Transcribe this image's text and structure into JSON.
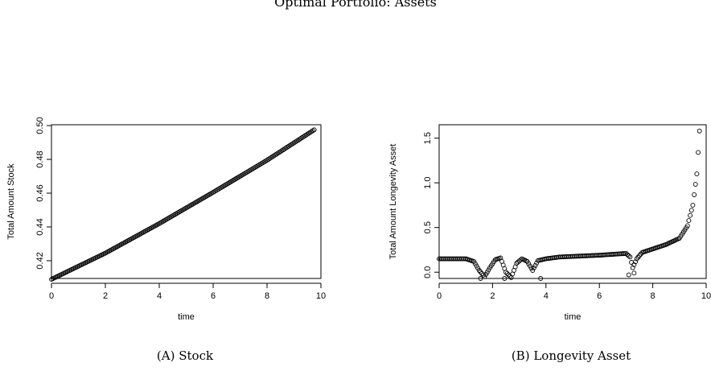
{
  "page": {
    "title_fragment": "Optimal Portfolio: Assets"
  },
  "captions": [
    {
      "label": "(A)",
      "text": "Stock"
    },
    {
      "label": "(B)",
      "text": "Longevity Asset"
    }
  ],
  "chart_data": [
    {
      "type": "scatter",
      "xlabel": "time",
      "ylabel": "Total Amount Stock",
      "xlim": [
        0,
        10
      ],
      "ylim": [
        0.4095,
        0.5005
      ],
      "xticks": [
        0,
        2,
        4,
        6,
        8,
        10
      ],
      "yticks": [
        0.42,
        0.44,
        0.46,
        0.48,
        0.5
      ],
      "grid": false,
      "x_start": 0,
      "x_end": 9.75,
      "x_step": 0.05,
      "y_at_x": [
        [
          0,
          0.409
        ],
        [
          2,
          0.4245
        ],
        [
          4,
          0.442
        ],
        [
          6,
          0.4605
        ],
        [
          8,
          0.4795
        ],
        [
          9.75,
          0.4975
        ]
      ]
    },
    {
      "type": "scatter",
      "xlabel": "time",
      "ylabel": "Total Amount Longevity Asset",
      "xlim": [
        0,
        10
      ],
      "ylim": [
        -0.07,
        1.65
      ],
      "xticks": [
        0,
        2,
        4,
        6,
        8,
        10
      ],
      "yticks": [
        0.0,
        0.5,
        1.0,
        1.5
      ],
      "grid": false,
      "x_start": 0,
      "x_end": 9.75,
      "x_step": 0.05,
      "y_at_x": [
        [
          0,
          0.15
        ],
        [
          1.0,
          0.15
        ],
        [
          1.3,
          0.12
        ],
        [
          1.5,
          0.02
        ],
        [
          1.7,
          -0.05
        ],
        [
          1.9,
          0.05
        ],
        [
          2.1,
          0.14
        ],
        [
          2.3,
          0.16
        ],
        [
          2.5,
          0.0
        ],
        [
          2.7,
          -0.06
        ],
        [
          2.9,
          0.1
        ],
        [
          3.1,
          0.15
        ],
        [
          3.3,
          0.12
        ],
        [
          3.5,
          0.02
        ],
        [
          3.7,
          0.13
        ],
        [
          4.0,
          0.15
        ],
        [
          4.5,
          0.17
        ],
        [
          6.0,
          0.19
        ],
        [
          7.0,
          0.21
        ],
        [
          7.15,
          0.17
        ],
        [
          7.25,
          0.05
        ],
        [
          7.4,
          0.15
        ],
        [
          7.6,
          0.22
        ],
        [
          8.0,
          0.26
        ],
        [
          8.5,
          0.31
        ],
        [
          9.0,
          0.38
        ],
        [
          9.3,
          0.52
        ],
        [
          9.5,
          0.75
        ],
        [
          9.65,
          1.1
        ],
        [
          9.75,
          1.58
        ]
      ],
      "extra_points": [
        [
          7.1,
          -0.03
        ],
        [
          7.3,
          -0.01
        ],
        [
          3.8,
          -0.07
        ],
        [
          2.45,
          -0.07
        ],
        [
          1.55,
          -0.07
        ]
      ]
    }
  ]
}
